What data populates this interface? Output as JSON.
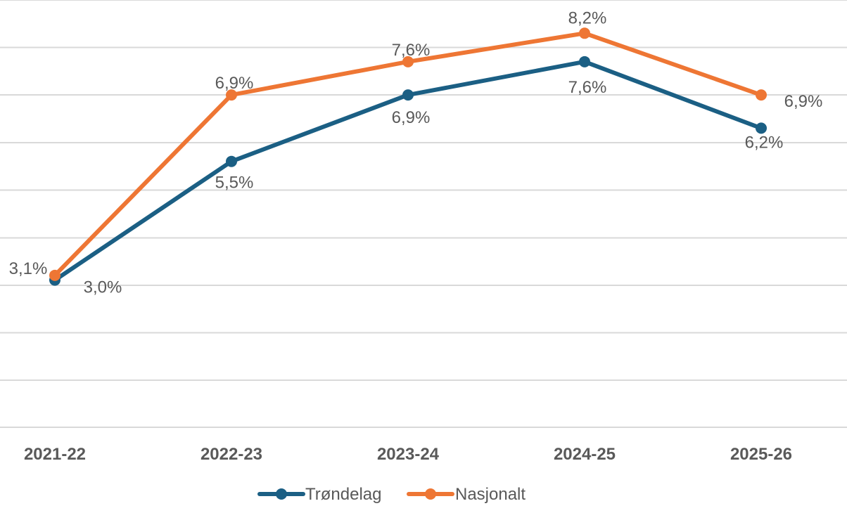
{
  "chart_data": {
    "type": "line",
    "categories": [
      "2021-22",
      "2022-23",
      "2023-24",
      "2024-25",
      "2025-26"
    ],
    "series": [
      {
        "name": "Trøndelag",
        "values": [
          3.0,
          5.5,
          6.9,
          7.6,
          6.2
        ],
        "labels": [
          "3,0%",
          "5,5%",
          "6,9%",
          "7,6%",
          "6,2%"
        ],
        "color": "#1B5F84"
      },
      {
        "name": "Nasjonalt",
        "values": [
          3.1,
          6.9,
          7.6,
          8.2,
          6.9
        ],
        "labels": [
          "3,1%",
          "6,9%",
          "7,6%",
          "8,2%",
          "6,9%"
        ],
        "color": "#EE7634"
      }
    ],
    "ylim": [
      -0.1,
      8.9
    ],
    "grid": true,
    "legend": "bottom"
  }
}
